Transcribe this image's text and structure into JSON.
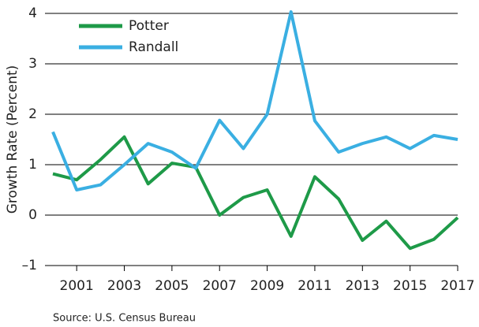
{
  "chart_data": {
    "type": "line",
    "x_label": null,
    "y_label": "Growth Rate (Percent)",
    "source": "Source: U.S. Census Bureau",
    "x": [
      2000,
      2001,
      2002,
      2003,
      2004,
      2005,
      2006,
      2007,
      2008,
      2009,
      2010,
      2011,
      2012,
      2013,
      2014,
      2015,
      2016,
      2017
    ],
    "series": [
      {
        "name": "Potter",
        "color": "#1e9a48",
        "values": [
          0.82,
          0.7,
          1.1,
          1.55,
          0.62,
          1.03,
          0.95,
          0.0,
          0.35,
          0.5,
          -0.42,
          0.76,
          0.32,
          -0.5,
          -0.12,
          -0.66,
          -0.48,
          -0.05
        ]
      },
      {
        "name": "Randall",
        "color": "#3aafe2",
        "values": [
          1.65,
          0.5,
          0.6,
          1.0,
          1.42,
          1.25,
          0.93,
          1.88,
          1.32,
          2.0,
          4.03,
          1.87,
          1.25,
          1.42,
          1.55,
          1.32,
          1.58,
          1.5
        ]
      }
    ],
    "xlim": [
      2000,
      2017
    ],
    "xticks": [
      2001,
      2003,
      2005,
      2007,
      2009,
      2011,
      2013,
      2015,
      2017
    ],
    "ylim": [
      -1,
      4
    ],
    "yticks": [
      {
        "value": -1,
        "label": "–1"
      },
      0,
      1,
      2,
      3,
      4
    ],
    "grid": true
  }
}
